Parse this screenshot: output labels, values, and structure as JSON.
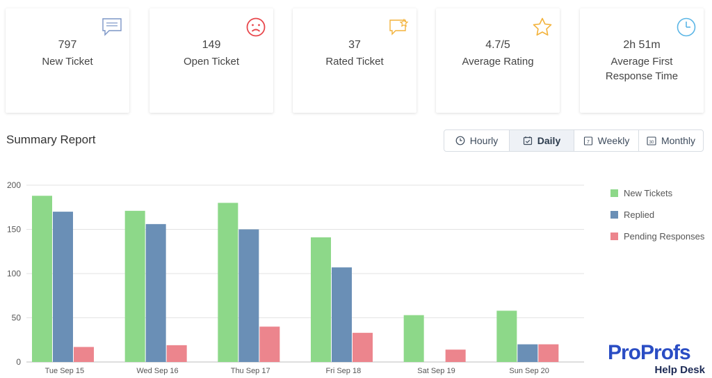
{
  "cards": [
    {
      "value": "797",
      "label": "New Ticket",
      "icon": "chat-bubble-icon",
      "icon_color": "#7b95c6"
    },
    {
      "value": "149",
      "label": "Open Ticket",
      "icon": "sad-face-icon",
      "icon_color": "#e8474c"
    },
    {
      "value": "37",
      "label": "Rated Ticket",
      "icon": "rated-chat-icon",
      "icon_color": "#f3b23a"
    },
    {
      "value": "4.7/5",
      "label": "Average Rating",
      "icon": "star-icon",
      "icon_color": "#f3b23a"
    },
    {
      "value": "2h 51m",
      "label": "Average First Response Time",
      "icon": "clock-icon",
      "icon_color": "#5bb6e6"
    }
  ],
  "summary": {
    "title": "Summary Report"
  },
  "periods": [
    {
      "label": "Hourly",
      "icon": "clock-icon",
      "active": false
    },
    {
      "label": "Daily",
      "icon": "calendar-check-icon",
      "active": true
    },
    {
      "label": "Weekly",
      "icon": "calendar-7-icon",
      "active": false
    },
    {
      "label": "Monthly",
      "icon": "calendar-30-icon",
      "active": false
    }
  ],
  "colors": {
    "new_tickets": "#8dd889",
    "replied": "#6a8fb6",
    "pending": "#ec858d",
    "grid": "#e3e3e3"
  },
  "brand": {
    "logo_text": "ProProfs",
    "sub_text": "Help Desk"
  },
  "chart_data": {
    "type": "bar",
    "categories": [
      "Tue Sep 15",
      "Wed Sep 16",
      "Thu Sep 17",
      "Fri Sep 18",
      "Sat Sep 19",
      "Sun Sep 20"
    ],
    "series": [
      {
        "name": "New Tickets",
        "values": [
          188,
          171,
          180,
          141,
          53,
          58
        ]
      },
      {
        "name": "Replied",
        "values": [
          170,
          156,
          150,
          107,
          0,
          20
        ]
      },
      {
        "name": "Pending Responses",
        "values": [
          17,
          19,
          40,
          33,
          14,
          20
        ]
      }
    ],
    "yticks": [
      0,
      50,
      100,
      150,
      200
    ],
    "ylim": [
      0,
      200
    ],
    "xlabel": "",
    "ylabel": "",
    "grid": true,
    "legend": "right"
  }
}
